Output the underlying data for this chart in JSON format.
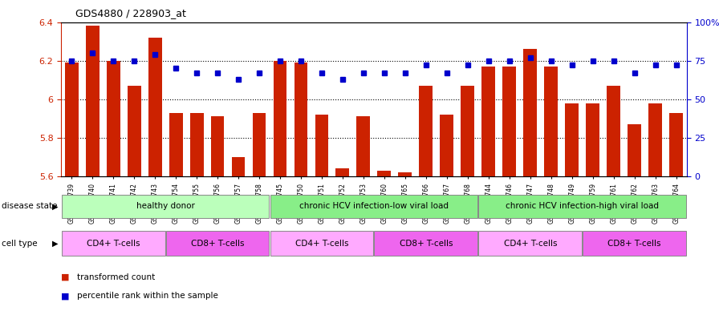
{
  "title": "GDS4880 / 228903_at",
  "samples": [
    "GSM1210739",
    "GSM1210740",
    "GSM1210741",
    "GSM1210742",
    "GSM1210743",
    "GSM1210754",
    "GSM1210755",
    "GSM1210756",
    "GSM1210757",
    "GSM1210758",
    "GSM1210745",
    "GSM1210750",
    "GSM1210751",
    "GSM1210752",
    "GSM1210753",
    "GSM1210760",
    "GSM1210765",
    "GSM1210766",
    "GSM1210767",
    "GSM1210768",
    "GSM1210744",
    "GSM1210746",
    "GSM1210747",
    "GSM1210748",
    "GSM1210749",
    "GSM1210759",
    "GSM1210761",
    "GSM1210762",
    "GSM1210763",
    "GSM1210764"
  ],
  "bar_values": [
    6.19,
    6.38,
    6.2,
    6.07,
    6.32,
    5.93,
    5.93,
    5.91,
    5.7,
    5.93,
    6.2,
    6.19,
    5.92,
    5.64,
    5.91,
    5.63,
    5.62,
    6.07,
    5.92,
    6.07,
    6.17,
    6.17,
    6.26,
    6.17,
    5.98,
    5.98,
    6.07,
    5.87,
    5.98,
    5.93
  ],
  "percentile_values": [
    75,
    80,
    75,
    75,
    79,
    70,
    67,
    67,
    63,
    67,
    75,
    75,
    67,
    63,
    67,
    67,
    67,
    72,
    67,
    72,
    75,
    75,
    77,
    75,
    72,
    75,
    75,
    67,
    72,
    72
  ],
  "ylim_left": [
    5.6,
    6.4
  ],
  "ylim_right": [
    0,
    100
  ],
  "yticks_left": [
    5.6,
    5.8,
    6.0,
    6.2,
    6.4
  ],
  "ytick_labels_left": [
    "5.6",
    "5.8",
    "6",
    "6.2",
    "6.4"
  ],
  "yticks_right": [
    0,
    25,
    50,
    75,
    100
  ],
  "ytick_labels_right": [
    "0",
    "25",
    "50",
    "75",
    "100%"
  ],
  "bar_color": "#CC2200",
  "dot_color": "#0000CC",
  "baseline": 5.6,
  "disease_groups": [
    {
      "label": "healthy donor",
      "start": 0,
      "end": 10,
      "color": "#BBFFBB"
    },
    {
      "label": "chronic HCV infection-low viral load",
      "start": 10,
      "end": 20,
      "color": "#88EE88"
    },
    {
      "label": "chronic HCV infection-high viral load",
      "start": 20,
      "end": 30,
      "color": "#88EE88"
    }
  ],
  "cell_groups": [
    {
      "label": "CD4+ T-cells",
      "start": 0,
      "end": 5,
      "color": "#FFAAFF"
    },
    {
      "label": "CD8+ T-cells",
      "start": 5,
      "end": 10,
      "color": "#EE66EE"
    },
    {
      "label": "CD4+ T-cells",
      "start": 10,
      "end": 15,
      "color": "#FFAAFF"
    },
    {
      "label": "CD8+ T-cells",
      "start": 15,
      "end": 20,
      "color": "#EE66EE"
    },
    {
      "label": "CD4+ T-cells",
      "start": 20,
      "end": 25,
      "color": "#FFAAFF"
    },
    {
      "label": "CD8+ T-cells",
      "start": 25,
      "end": 30,
      "color": "#EE66EE"
    }
  ],
  "legend_items": [
    {
      "label": "transformed count",
      "color": "#CC2200"
    },
    {
      "label": "percentile rank within the sample",
      "color": "#0000CC"
    }
  ]
}
